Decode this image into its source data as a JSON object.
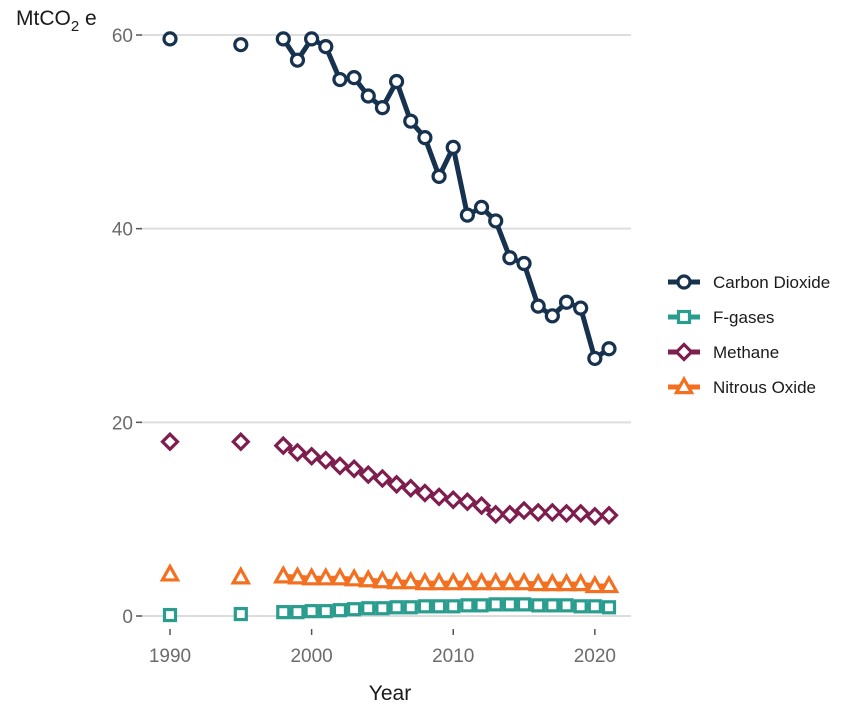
{
  "chart_data": {
    "type": "line",
    "ylabel_main": "MtCO",
    "ylabel_sub": "2",
    "ylabel_suffix": " e",
    "xlabel": "Year",
    "xlim": [
      1990,
      2021
    ],
    "ylim": [
      0,
      60
    ],
    "xticks": [
      1990,
      2000,
      2010,
      2020
    ],
    "yticks": [
      0,
      20,
      40,
      60
    ],
    "grid": "horizontal",
    "legend_position": "right",
    "series": [
      {
        "name": "Carbon Dioxide",
        "color": "#16324f",
        "marker": "circle",
        "points": [
          [
            1990,
            59.6
          ],
          [
            1995,
            59.0
          ],
          [
            1998,
            59.6
          ],
          [
            1999,
            57.4
          ],
          [
            2000,
            59.6
          ],
          [
            2001,
            58.8
          ],
          [
            2002,
            55.4
          ],
          [
            2003,
            55.6
          ],
          [
            2004,
            53.7
          ],
          [
            2005,
            52.5
          ],
          [
            2006,
            55.2
          ],
          [
            2007,
            51.1
          ],
          [
            2008,
            49.4
          ],
          [
            2009,
            45.4
          ],
          [
            2010,
            48.4
          ],
          [
            2011,
            41.4
          ],
          [
            2012,
            42.2
          ],
          [
            2013,
            40.8
          ],
          [
            2014,
            37.0
          ],
          [
            2015,
            36.4
          ],
          [
            2016,
            32.0
          ],
          [
            2017,
            31.0
          ],
          [
            2018,
            32.4
          ],
          [
            2019,
            31.8
          ],
          [
            2020,
            26.6
          ],
          [
            2021,
            27.6
          ]
        ]
      },
      {
        "name": "F-gases",
        "color": "#2a9d8f",
        "marker": "square",
        "points": [
          [
            1990,
            0.1
          ],
          [
            1995,
            0.2
          ],
          [
            1998,
            0.4
          ],
          [
            1999,
            0.4
          ],
          [
            2000,
            0.5
          ],
          [
            2001,
            0.5
          ],
          [
            2002,
            0.6
          ],
          [
            2003,
            0.7
          ],
          [
            2004,
            0.8
          ],
          [
            2005,
            0.8
          ],
          [
            2006,
            0.9
          ],
          [
            2007,
            0.9
          ],
          [
            2008,
            1.0
          ],
          [
            2009,
            1.0
          ],
          [
            2010,
            1.0
          ],
          [
            2011,
            1.1
          ],
          [
            2012,
            1.1
          ],
          [
            2013,
            1.2
          ],
          [
            2014,
            1.2
          ],
          [
            2015,
            1.2
          ],
          [
            2016,
            1.1
          ],
          [
            2017,
            1.1
          ],
          [
            2018,
            1.1
          ],
          [
            2019,
            1.0
          ],
          [
            2020,
            1.0
          ],
          [
            2021,
            0.9
          ]
        ]
      },
      {
        "name": "Methane",
        "color": "#7e1e4e",
        "marker": "diamond",
        "points": [
          [
            1990,
            18.0
          ],
          [
            1995,
            18.0
          ],
          [
            1998,
            17.6
          ],
          [
            1999,
            16.9
          ],
          [
            2000,
            16.5
          ],
          [
            2001,
            16.1
          ],
          [
            2002,
            15.5
          ],
          [
            2003,
            15.2
          ],
          [
            2004,
            14.6
          ],
          [
            2005,
            14.2
          ],
          [
            2006,
            13.6
          ],
          [
            2007,
            13.2
          ],
          [
            2008,
            12.7
          ],
          [
            2009,
            12.3
          ],
          [
            2010,
            12.0
          ],
          [
            2011,
            11.8
          ],
          [
            2012,
            11.4
          ],
          [
            2013,
            10.5
          ],
          [
            2014,
            10.5
          ],
          [
            2015,
            10.9
          ],
          [
            2016,
            10.7
          ],
          [
            2017,
            10.7
          ],
          [
            2018,
            10.6
          ],
          [
            2019,
            10.6
          ],
          [
            2020,
            10.3
          ],
          [
            2021,
            10.4
          ]
        ]
      },
      {
        "name": "Nitrous Oxide",
        "color": "#f37021",
        "marker": "triangle",
        "points": [
          [
            1990,
            4.3
          ],
          [
            1995,
            4.0
          ],
          [
            1998,
            4.1
          ],
          [
            1999,
            4.0
          ],
          [
            2000,
            3.9
          ],
          [
            2001,
            3.9
          ],
          [
            2002,
            3.9
          ],
          [
            2003,
            3.8
          ],
          [
            2004,
            3.7
          ],
          [
            2005,
            3.6
          ],
          [
            2006,
            3.5
          ],
          [
            2007,
            3.5
          ],
          [
            2008,
            3.4
          ],
          [
            2009,
            3.4
          ],
          [
            2010,
            3.4
          ],
          [
            2011,
            3.4
          ],
          [
            2012,
            3.4
          ],
          [
            2013,
            3.4
          ],
          [
            2014,
            3.4
          ],
          [
            2015,
            3.4
          ],
          [
            2016,
            3.3
          ],
          [
            2017,
            3.3
          ],
          [
            2018,
            3.3
          ],
          [
            2019,
            3.3
          ],
          [
            2020,
            3.1
          ],
          [
            2021,
            3.1
          ]
        ]
      }
    ]
  }
}
